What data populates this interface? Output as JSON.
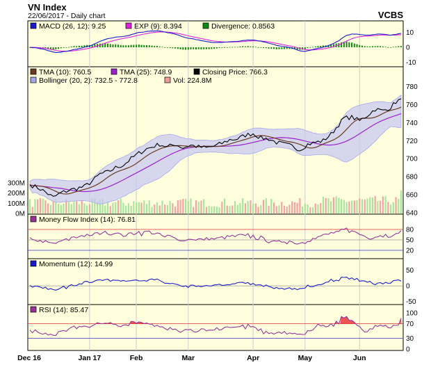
{
  "header": {
    "title": "VN Index",
    "subtitle": "22/06/2017 - Daily chart",
    "source": "VCBS"
  },
  "x_axis": {
    "labels": [
      {
        "text": "Dec 16",
        "day": 0
      },
      {
        "text": "Jan 17",
        "day": 23
      },
      {
        "text": "Feb",
        "day": 41
      },
      {
        "text": "Mar",
        "day": 61
      },
      {
        "text": "Apr",
        "day": 86
      },
      {
        "text": "May",
        "day": 106
      },
      {
        "text": "Jun",
        "day": 127
      }
    ],
    "gridlines_at_days": [
      23,
      41,
      61,
      86,
      106,
      127
    ]
  },
  "panels": {
    "macd": {
      "legend": [
        {
          "text": "MACD (26, 12): 9.25",
          "color": "#1a1acc"
        },
        {
          "text": "EXP (9): 8.394",
          "color": "#dd22dd"
        },
        {
          "text": "Divergence: 0.8563",
          "color": "#118811"
        }
      ],
      "ticks": [
        "10",
        "0",
        "-10"
      ]
    },
    "price": {
      "legend_row1": [
        {
          "text": "TMA (10): 760.5",
          "color": "#6b3a1e"
        },
        {
          "text": "TMA (25): 748.9",
          "color": "#9922cc"
        },
        {
          "text": "Closing Price: 766.3",
          "color": "#000000"
        }
      ],
      "legend_row2": [
        {
          "text": "Bollinger (20, 2): 732.5 - 772.8",
          "color": "#a8a8ee"
        },
        {
          "text": "Vol: 224.8M",
          "color": "#f09a9a"
        }
      ],
      "ticks": [
        "780",
        "760",
        "740",
        "720",
        "700",
        "680",
        "660",
        "640"
      ],
      "volume_ticks": [
        "300M",
        "200M",
        "100M",
        "0M"
      ]
    },
    "mfi": {
      "legend": [
        {
          "text": "Money Flow Index (14): 76.81",
          "color": "#993399"
        }
      ],
      "ticks": [
        "80",
        "50",
        "20"
      ]
    },
    "momentum": {
      "legend": [
        {
          "text": "Momentum (12): 14.99",
          "color": "#1a1acc"
        }
      ],
      "ticks": [
        "50",
        "0",
        "-50"
      ]
    },
    "rsi": {
      "legend": [
        {
          "text": "RSI (14): 85.47",
          "color": "#993399"
        }
      ],
      "ticks": [
        "100",
        "70",
        "30",
        "0"
      ]
    }
  },
  "chart_data": {
    "type": "line",
    "title": "VN Index",
    "subtitle": "22/06/2017 - Daily chart",
    "days": 144,
    "close_keypoints": [
      [
        0,
        671
      ],
      [
        3,
        668
      ],
      [
        6,
        663
      ],
      [
        9,
        657
      ],
      [
        12,
        662
      ],
      [
        15,
        665
      ],
      [
        18,
        667
      ],
      [
        21,
        669
      ],
      [
        24,
        675
      ],
      [
        27,
        683
      ],
      [
        30,
        685
      ],
      [
        33,
        690
      ],
      [
        36,
        693
      ],
      [
        39,
        700
      ],
      [
        42,
        706
      ],
      [
        45,
        711
      ],
      [
        48,
        714
      ],
      [
        50,
        716
      ],
      [
        53,
        713
      ],
      [
        56,
        716
      ],
      [
        59,
        712
      ],
      [
        62,
        715
      ],
      [
        65,
        713
      ],
      [
        68,
        712
      ],
      [
        71,
        714
      ],
      [
        74,
        717
      ],
      [
        77,
        721
      ],
      [
        80,
        722
      ],
      [
        83,
        726
      ],
      [
        86,
        728
      ],
      [
        89,
        723
      ],
      [
        92,
        722
      ],
      [
        95,
        718
      ],
      [
        98,
        716
      ],
      [
        101,
        714
      ],
      [
        104,
        710
      ],
      [
        107,
        716
      ],
      [
        110,
        718
      ],
      [
        113,
        720
      ],
      [
        116,
        727
      ],
      [
        119,
        738
      ],
      [
        121,
        745
      ],
      [
        124,
        746
      ],
      [
        127,
        742
      ],
      [
        130,
        748
      ],
      [
        133,
        755
      ],
      [
        136,
        753
      ],
      [
        139,
        757
      ],
      [
        141,
        763
      ],
      [
        143,
        766.3
      ]
    ],
    "close_last": 766.3,
    "tma10_last": 760.5,
    "tma25_last": 748.9,
    "bollinger_last": [
      732.5,
      772.8
    ],
    "volume_last_M": 224.8,
    "price_ylim": [
      640,
      785
    ],
    "volume_axis_max_M": 400,
    "macd_last": 9.25,
    "exp_last": 8.394,
    "divergence_last": 0.8563,
    "macd_ylim": [
      -12,
      12
    ],
    "mfi_last": 76.81,
    "mfi_levels": [
      80,
      50,
      20
    ],
    "momentum_last": 14.99,
    "momentum_ylim": [
      -55,
      60
    ],
    "rsi_last": 85.47,
    "rsi_levels": [
      70,
      30
    ],
    "colors": {
      "panel_bg": "#ffffdd",
      "close": "#000000",
      "tma10": "#6b3a1e",
      "tma25": "#9922cc",
      "bollinger_fill": "#c8c8f2",
      "bollinger_edge": "#a8a8ee",
      "vol_up": "#a8e6a0",
      "vol_down": "#f4a4a4",
      "macd": "#1a1acc",
      "exp": "#dd22dd",
      "divergence": "#118811",
      "mfi": "#993399",
      "momentum": "#1a1acc",
      "rsi": "#993399",
      "rsi_fill": "#ee5555",
      "level_red": "#dd3333",
      "level_blue": "#3333cc"
    }
  }
}
